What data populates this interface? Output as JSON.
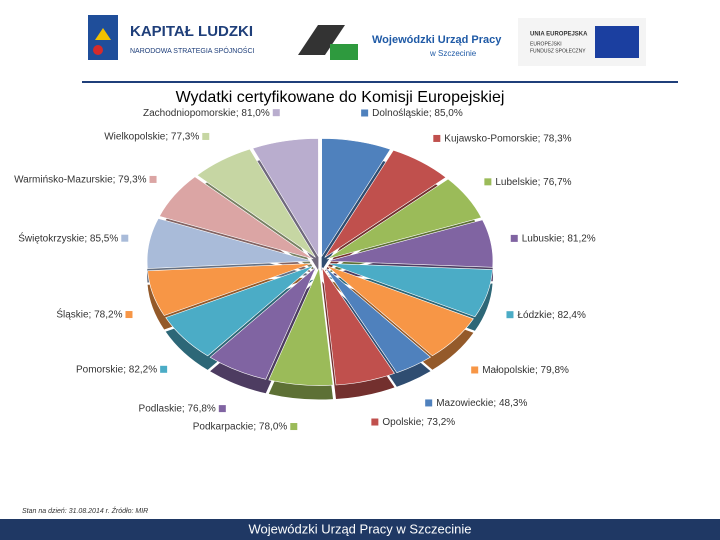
{
  "header": {
    "logo1_title": "KAPITAŁ LUDZKI",
    "logo1_subtitle": "NARODOWA STRATEGIA SPÓJNOŚCI",
    "logo2_title": "Wojewódzki Urząd Pracy",
    "logo2_subtitle": "w Szczecinie",
    "logo3_title": "UNIA EUROPEJSKA",
    "logo3_line1": "EUROPEJSKI",
    "logo3_line2": "FUNDUSZ SPOŁECZNY"
  },
  "chart_data": {
    "type": "pie",
    "title": "Wydatki certyfikowane do Komisji Europejskiej",
    "values": [
      85.0,
      78.3,
      76.7,
      81.2,
      82.4,
      79.8,
      48.3,
      73.2,
      78.0,
      76.8,
      82.2,
      78.2,
      85.5,
      79.3,
      77.3,
      81.0
    ],
    "value_labels": [
      "Dolnośląskie; 85,0%",
      "Kujawsko-Pomorskie; 78,3%",
      "Lubelskie; 76,7%",
      "Lubuskie; 81,2%",
      "Łódzkie; 82,4%",
      "Małopolskie; 79,8%",
      "Mazowieckie; 48,3%",
      "Opolskie; 73,2%",
      "Podkarpackie; 78,0%",
      "Podlaskie; 76,8%",
      "Pomorskie; 82,2%",
      "Śląskie; 78,2%",
      "Świętokrzyskie; 85,5%",
      "Warmińsko-Mazurskie; 79,3%",
      "Wielkopolskie; 77,3%",
      "Zachodniopomorskie; 81,0%"
    ],
    "colors": [
      "#4f81bd",
      "#c0504d",
      "#9bbb59",
      "#8064a2",
      "#4bacc6",
      "#f79646",
      "#4f81bd",
      "#c0504d",
      "#9bbb59",
      "#8064a2",
      "#4bacc6",
      "#f79646",
      "#a9bbd9",
      "#dba5a4",
      "#c6d6a3",
      "#b9adce"
    ]
  },
  "footer": {
    "note": "Stan na dzień: 31.08.2014 r. Źródło: MIR",
    "bar": "Wojewódzki Urząd Pracy w Szczecinie"
  }
}
